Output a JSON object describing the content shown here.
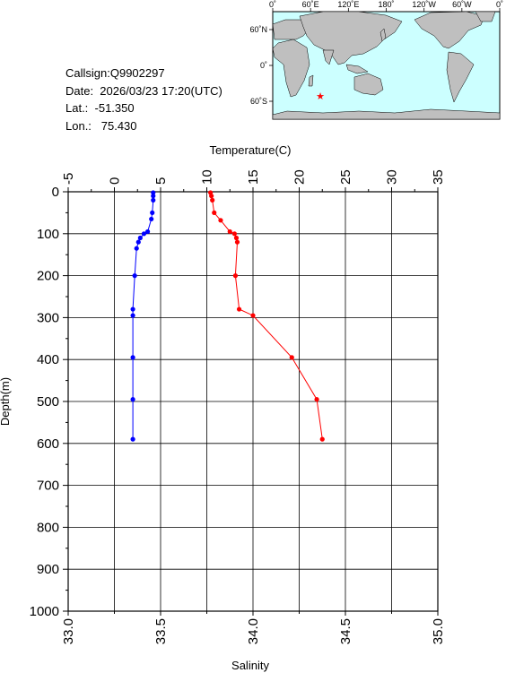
{
  "info": {
    "callsign": "Callsign:Q9902297",
    "date": "Date:  2026/03/23 17:20(UTC)",
    "lat": "Lat.:  -51.350",
    "lon": "Lon.:   75.430"
  },
  "map": {
    "lon_labels": [
      "0˚",
      "60˚E",
      "120˚E",
      "180˚",
      "120˚W",
      "60˚W",
      "0˚"
    ],
    "lat_labels": [
      "60˚N",
      "0˚",
      "60˚S"
    ],
    "ocean_color": "#ccffff",
    "land_color": "#bfbfbf",
    "marker": {
      "lon": 75.43,
      "lat": -51.35,
      "symbol": "★",
      "color": "#ff0000"
    }
  },
  "chart_data": {
    "type": "line",
    "xlabel_top": "Temperature(C)",
    "xlabel_bottom": "Salinity",
    "ylabel": "Depth(m)",
    "temperature_axis": {
      "min": -5,
      "max": 35,
      "ticks": [
        -5,
        0,
        5,
        10,
        15,
        20,
        25,
        30,
        35
      ]
    },
    "salinity_axis": {
      "min": 33.0,
      "max": 35.0,
      "ticks": [
        "33.0",
        "33.5",
        "34.0",
        "34.5",
        "35.0"
      ]
    },
    "depth_axis": {
      "min": 0,
      "max": 1000,
      "ticks": [
        0,
        100,
        200,
        300,
        400,
        500,
        600,
        700,
        800,
        900,
        1000
      ]
    },
    "grid": true,
    "series": [
      {
        "name": "Temperature",
        "axis": "temperature",
        "color": "#ff0000",
        "points": [
          [
            10.4,
            2
          ],
          [
            10.5,
            10
          ],
          [
            10.6,
            20
          ],
          [
            10.8,
            50
          ],
          [
            11.5,
            68
          ],
          [
            12.5,
            95
          ],
          [
            13.0,
            100
          ],
          [
            13.2,
            110
          ],
          [
            13.3,
            120
          ],
          [
            13.1,
            200
          ],
          [
            13.5,
            280
          ],
          [
            15.0,
            295
          ],
          [
            19.2,
            395
          ],
          [
            21.9,
            495
          ],
          [
            22.5,
            590
          ]
        ]
      },
      {
        "name": "Salinity",
        "axis": "salinity",
        "color": "#0000ff",
        "points": [
          [
            33.46,
            2
          ],
          [
            33.46,
            10
          ],
          [
            33.46,
            20
          ],
          [
            33.455,
            50
          ],
          [
            33.45,
            65
          ],
          [
            33.43,
            95
          ],
          [
            33.41,
            100
          ],
          [
            33.39,
            110
          ],
          [
            33.38,
            120
          ],
          [
            33.37,
            135
          ],
          [
            33.36,
            200
          ],
          [
            33.35,
            280
          ],
          [
            33.35,
            295
          ],
          [
            33.35,
            395
          ],
          [
            33.35,
            495
          ],
          [
            33.35,
            590
          ]
        ]
      }
    ]
  }
}
